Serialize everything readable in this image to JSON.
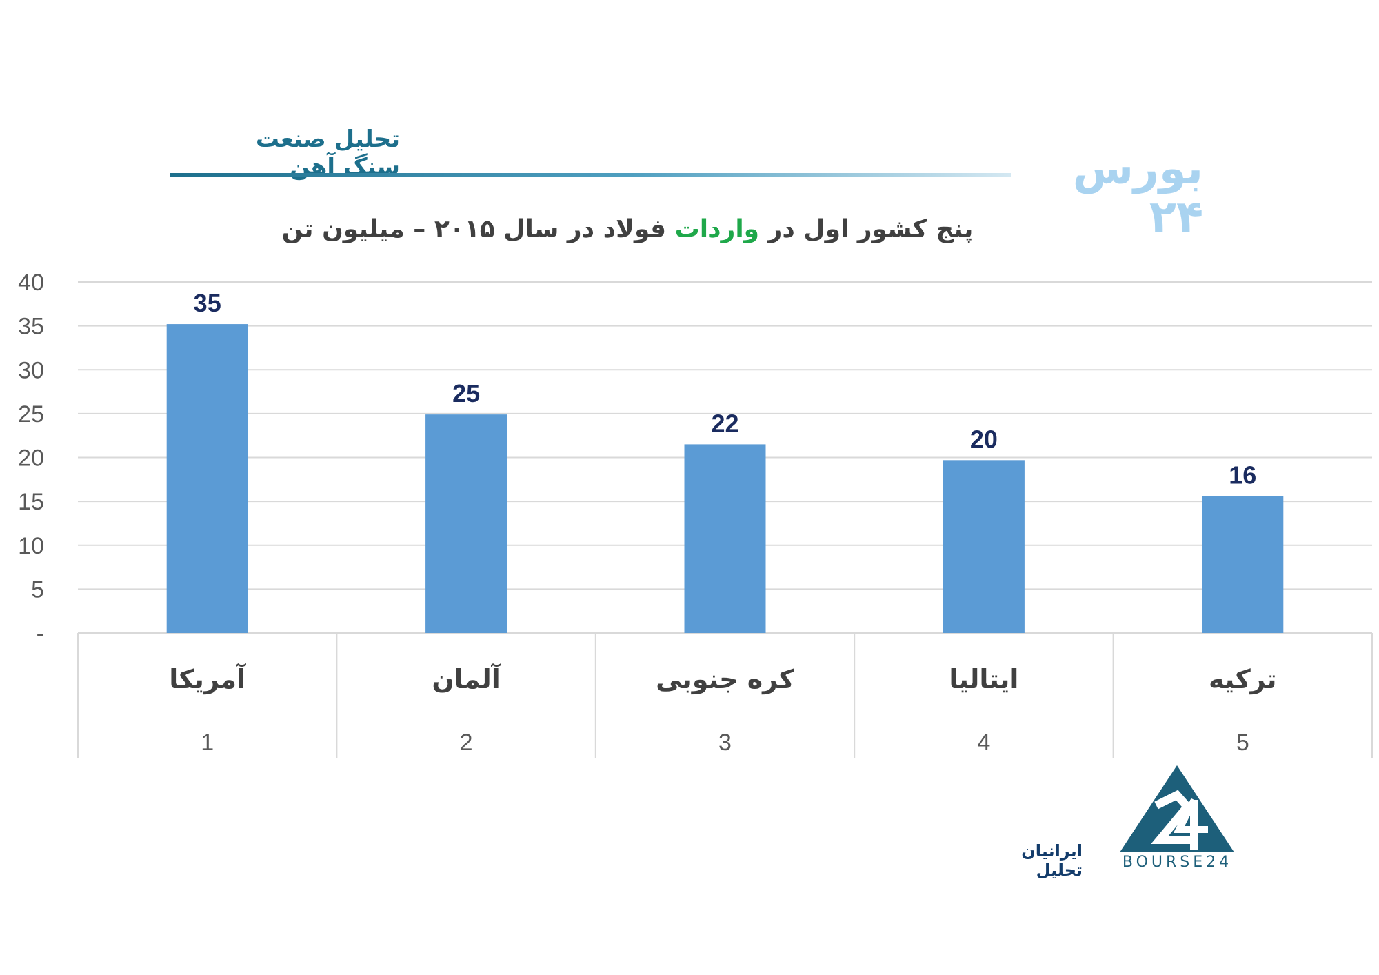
{
  "header": {
    "title": "تحلیل صنعت سنگ آهن",
    "brand": "بورس ۲۴"
  },
  "chart_data": {
    "type": "bar",
    "title_parts": [
      "پنج کشور اول در ",
      "واردات",
      " فولاد در سال ۲۰۱۵ –  میلیون تن"
    ],
    "categories": [
      "آمریکا",
      "آلمان",
      "کره جنوبی",
      "ایتالیا",
      "ترکیه"
    ],
    "ranks": [
      "1",
      "2",
      "3",
      "4",
      "5"
    ],
    "values": [
      35.2,
      24.9,
      21.5,
      19.7,
      15.6
    ],
    "data_labels": [
      "35",
      "25",
      "22",
      "20",
      "16"
    ],
    "ylim": [
      0,
      40
    ],
    "yticks": [
      0,
      5,
      10,
      15,
      20,
      25,
      30,
      35,
      40
    ],
    "ytick_labels": [
      "-",
      "5",
      "10",
      "15",
      "20",
      "25",
      "30",
      "35",
      "40"
    ],
    "grid": true,
    "colors": {
      "bar": "#5b9bd5",
      "data_label": "#1a2b5f",
      "accent": "#1fa84a",
      "grid": "#d9d9d9",
      "axis_text": "#595959"
    }
  },
  "footer": {
    "company": "ایرانیان تحلیل",
    "logo_text": "BOURSE24",
    "logo_icon": "bourse24-logo-icon"
  }
}
